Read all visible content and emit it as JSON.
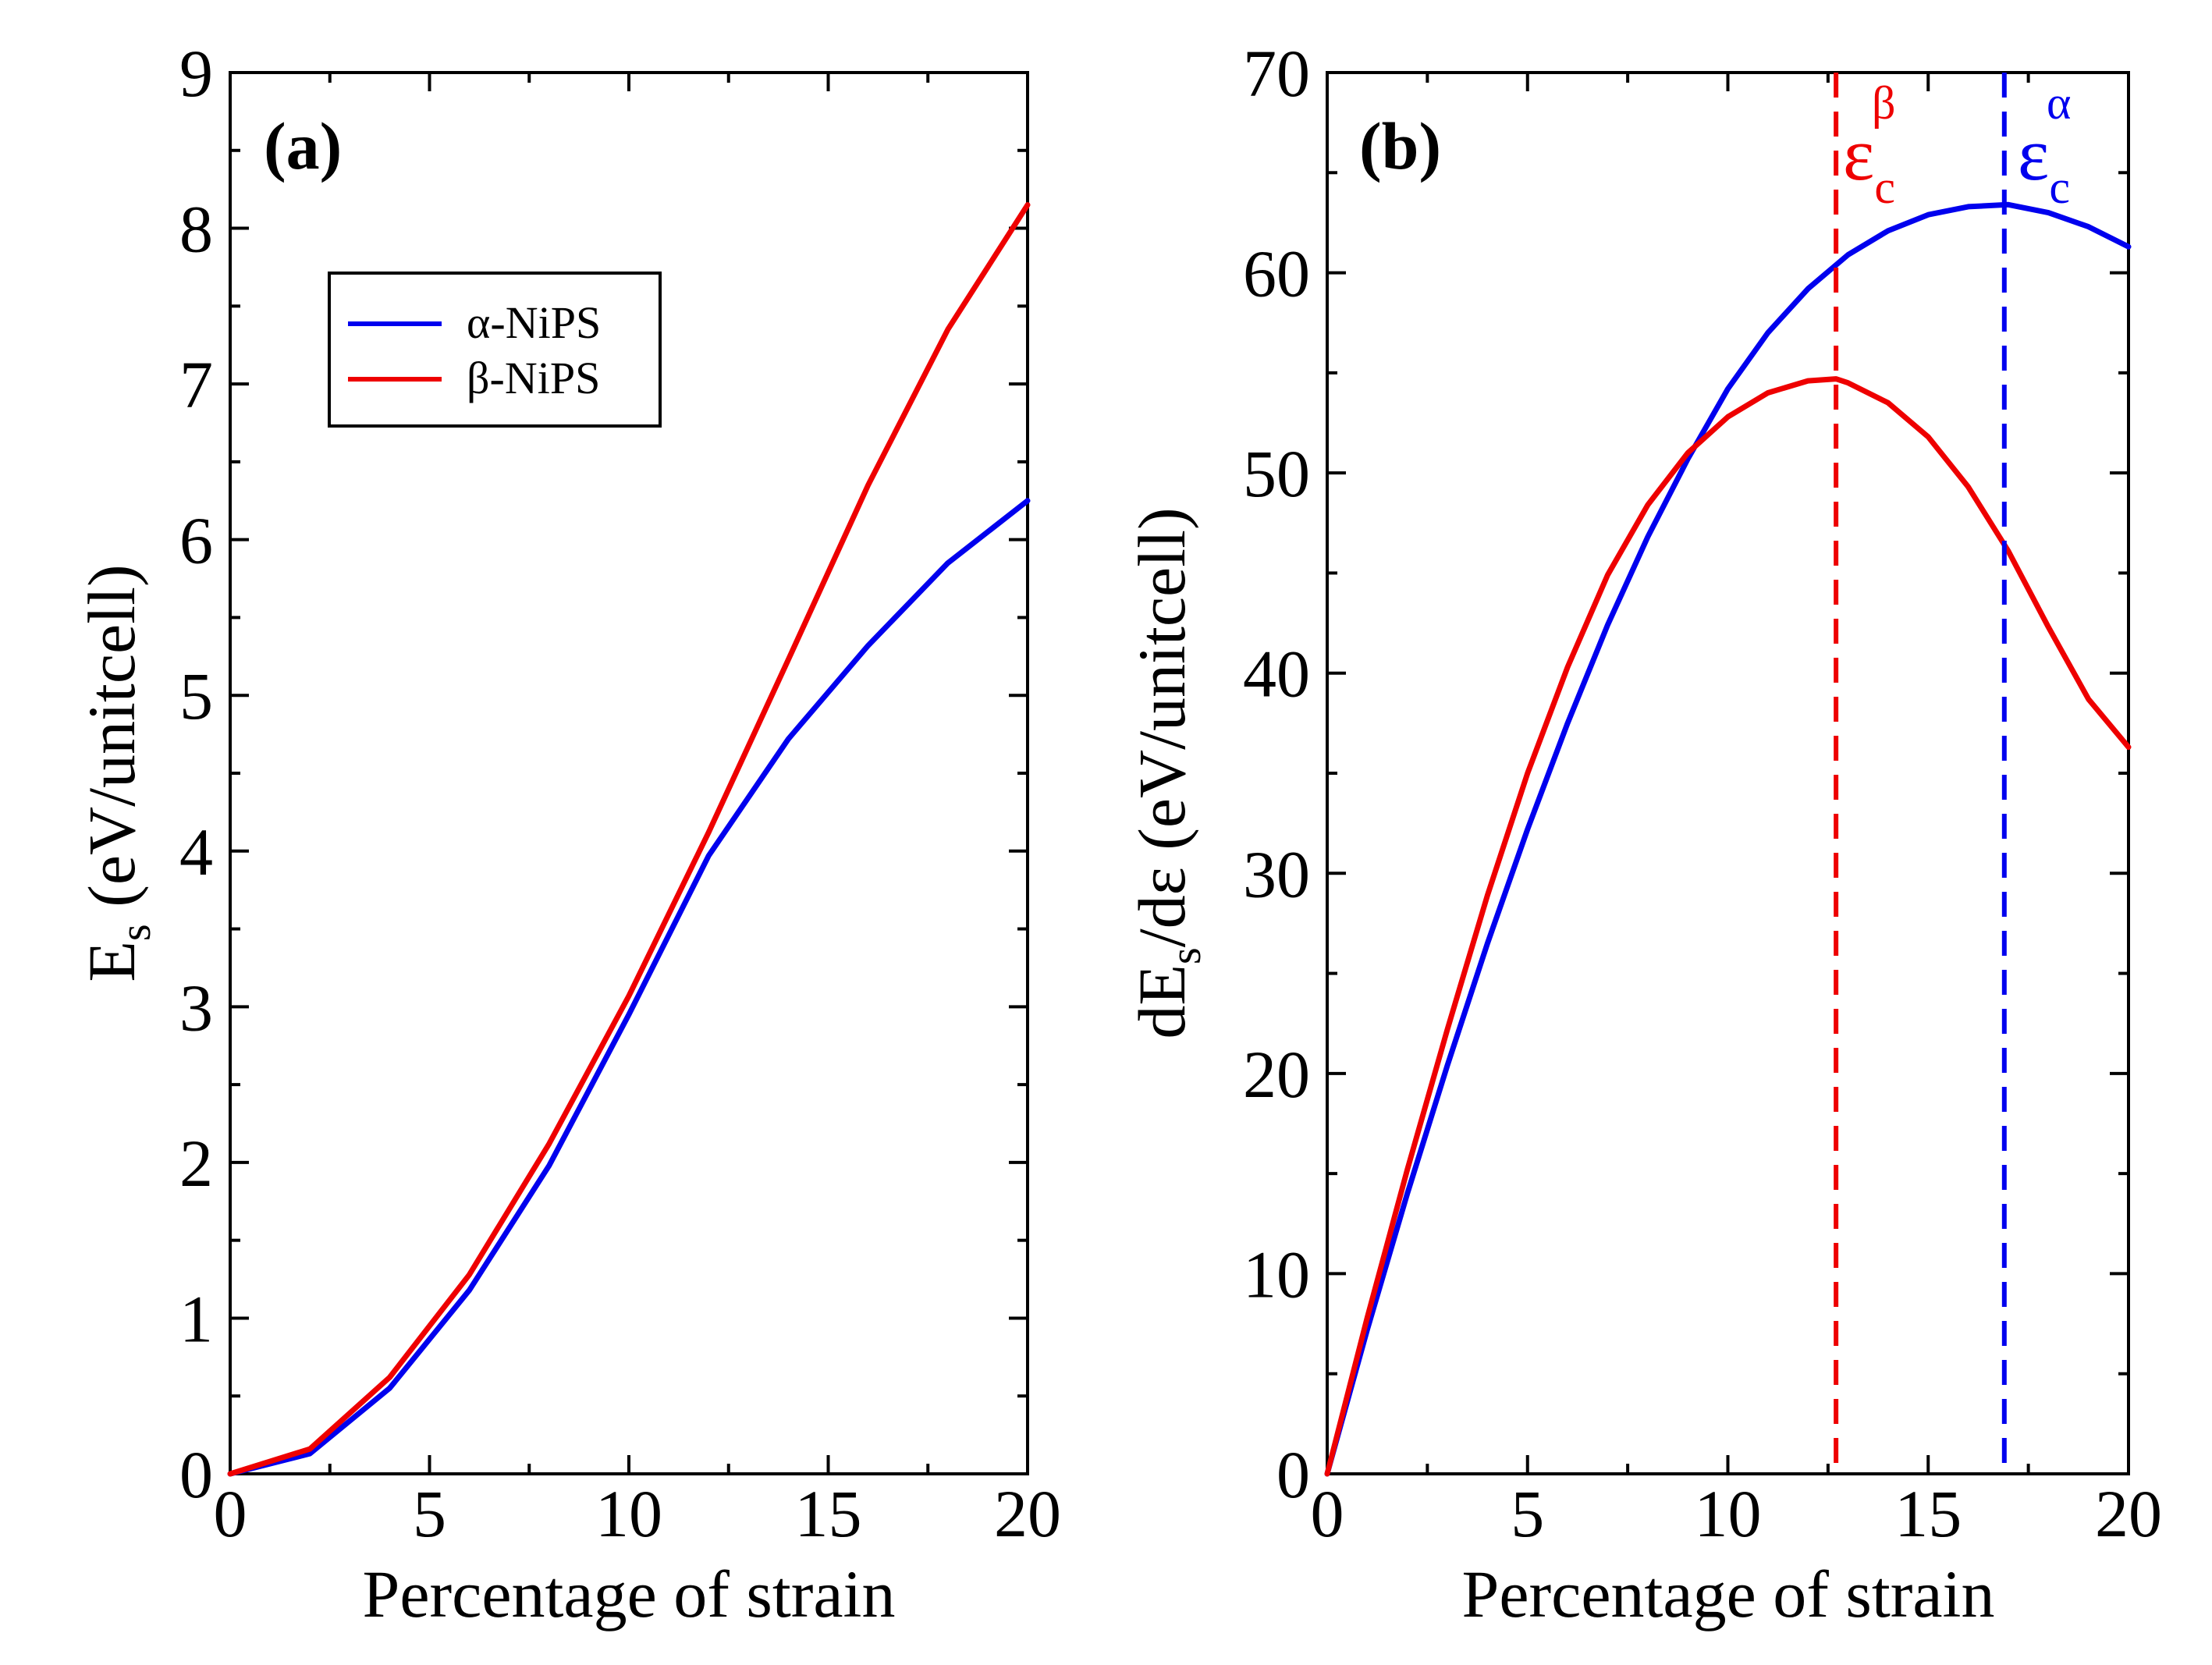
{
  "chart_data": [
    {
      "type": "line",
      "panel_label": "(a)",
      "xlabel": "Percentage of strain",
      "ylabel": {
        "main": "E",
        "sub": "s",
        "rest": " (eV/unitcell)"
      },
      "xlim": [
        0,
        20
      ],
      "ylim": [
        0,
        9
      ],
      "xticks": [
        0,
        5,
        10,
        15,
        20
      ],
      "yticks": [
        0,
        1,
        2,
        3,
        4,
        5,
        6,
        7,
        8,
        9
      ],
      "legend": {
        "position": "upper-left",
        "entries": [
          "α-NiPS",
          "β-NiPS"
        ]
      },
      "series": [
        {
          "name": "α-NiPS",
          "color": "#0000ee",
          "x": [
            0,
            2,
            4,
            6,
            8,
            10,
            12,
            14,
            16,
            18,
            20
          ],
          "y": [
            0,
            0.13,
            0.55,
            1.18,
            1.98,
            2.95,
            3.97,
            4.72,
            5.32,
            5.85,
            6.25
          ]
        },
        {
          "name": "β-NiPS",
          "color": "#ee0000",
          "x": [
            0,
            2,
            4,
            6,
            8,
            10,
            12,
            14,
            16,
            18,
            20
          ],
          "y": [
            0,
            0.16,
            0.62,
            1.28,
            2.12,
            3.07,
            4.12,
            5.23,
            6.35,
            7.35,
            8.15
          ]
        }
      ]
    },
    {
      "type": "line",
      "panel_label": "(b)",
      "xlabel": "Percentage of strain",
      "ylabel": {
        "main": "dE",
        "sub": "s",
        "rest": "/dε (eV/unitcell)"
      },
      "xlim": [
        0,
        20
      ],
      "ylim": [
        0,
        70
      ],
      "xticks": [
        0,
        5,
        10,
        15,
        20
      ],
      "yticks": [
        0,
        10,
        20,
        30,
        40,
        50,
        60,
        70
      ],
      "series": [
        {
          "name": "α-NiPS",
          "color": "#0000ee",
          "x": [
            0,
            1,
            2,
            3,
            4,
            5,
            6,
            7,
            8,
            9,
            10,
            11,
            12,
            13,
            14,
            15,
            16,
            17,
            18,
            19,
            20
          ],
          "y": [
            0,
            7.2,
            14.0,
            20.4,
            26.5,
            32.2,
            37.5,
            42.4,
            46.8,
            50.7,
            54.2,
            57.0,
            59.2,
            60.9,
            62.1,
            62.9,
            63.3,
            63.4,
            63.0,
            62.3,
            61.3
          ]
        },
        {
          "name": "β-NiPS",
          "color": "#ee0000",
          "x": [
            0,
            1,
            2,
            3,
            4,
            5,
            6,
            7,
            8,
            9,
            10,
            11,
            12,
            12.7,
            13,
            14,
            15,
            16,
            17,
            18,
            19,
            20
          ],
          "y": [
            0,
            7.8,
            15.2,
            22.2,
            28.9,
            35.0,
            40.3,
            44.9,
            48.4,
            51.0,
            52.8,
            54.0,
            54.6,
            54.7,
            54.5,
            53.5,
            51.8,
            49.3,
            46.1,
            42.3,
            38.7,
            36.3
          ]
        }
      ],
      "vlines": [
        {
          "x": 12.7,
          "color": "#ee0000",
          "style": "dashed",
          "label": {
            "base": "ε",
            "sub": "c",
            "sup": "β"
          }
        },
        {
          "x": 16.9,
          "color": "#0000ee",
          "style": "dashed",
          "label": {
            "base": "ε",
            "sub": "c",
            "sup": "α"
          }
        }
      ]
    }
  ]
}
